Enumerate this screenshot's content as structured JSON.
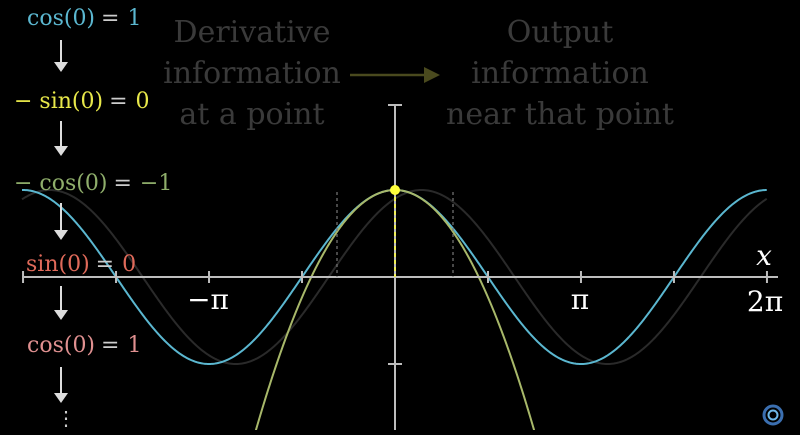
{
  "derivative_chain": [
    {
      "expr": "cos(0)",
      "value": "1",
      "color": "#5bb7d0"
    },
    {
      "expr": "− sin(0)",
      "value": "0",
      "color": "#e8e84a"
    },
    {
      "expr": "− cos(0)",
      "value": "−1",
      "color": "#8fae6b"
    },
    {
      "expr": "sin(0)",
      "value": "0",
      "color": "#e06a5a"
    },
    {
      "expr": "cos(0)",
      "value": "1",
      "color": "#e09090"
    }
  ],
  "chain_more": "⋮",
  "concept": {
    "left": [
      "Derivative",
      "information",
      "at a point"
    ],
    "right": [
      "Output",
      "information",
      "near that point"
    ],
    "text_color": "#3a3a3a",
    "arrow_color": "#4a4a1e"
  },
  "axes": {
    "x_variable": "x",
    "tick_labels": [
      "−π",
      "π",
      "2π"
    ],
    "color": "#bdbdbd"
  },
  "curves": {
    "cos_color": "#5bb7d0",
    "approx_color": "#a8b86a",
    "shadow_color": "#2a2a2a",
    "point_color": "#ffff3a"
  }
}
